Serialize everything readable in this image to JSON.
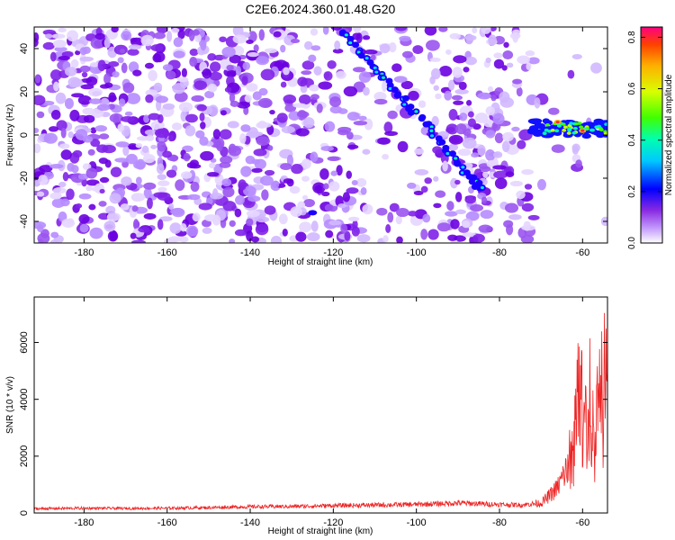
{
  "title": "C2E6.2024.360.01.48.G20",
  "chart_data": [
    {
      "type": "heatmap",
      "xlabel": "Height of straight line (km)",
      "ylabel": "Frequency (Hz)",
      "xlim": [
        -192,
        -54
      ],
      "ylim": [
        -50,
        50
      ],
      "x_ticks": [
        -180,
        -160,
        -140,
        -120,
        -100,
        -80,
        -60
      ],
      "y_ticks": [
        -40,
        -20,
        0,
        20,
        40
      ],
      "colorbar": {
        "label": "Normalized spectral amplitude",
        "range": [
          0,
          0.84
        ],
        "ticks": [
          "0.0",
          "0.2",
          "0.4",
          "0.6",
          "0.8"
        ],
        "colors": [
          "#ffffff",
          "#c9a6ff",
          "#8a2be2",
          "#4b00ff",
          "#0000ff",
          "#00c8ff",
          "#00ffb0",
          "#40ff00",
          "#d8ff00",
          "#ffb000",
          "#ff4000",
          "#ff0080"
        ]
      },
      "features": [
        {
          "name": "diagonal streak",
          "x": [
            -118,
            -112,
            -106,
            -100,
            -94,
            -88,
            -84
          ],
          "y": [
            48,
            35,
            22,
            10,
            -4,
            -18,
            -26
          ]
        },
        {
          "name": "horizontal band",
          "x": [
            -72,
            -54
          ],
          "y": [
            3,
            3
          ]
        }
      ]
    },
    {
      "type": "line",
      "xlabel": "Height of straight line (km)",
      "ylabel": "SNR (10 * v/v)",
      "xlim": [
        -192,
        -54
      ],
      "ylim": [
        0,
        7600
      ],
      "x_ticks": [
        -180,
        -160,
        -140,
        -120,
        -100,
        -80,
        -60
      ],
      "y_ticks": [
        0,
        2000,
        4000,
        6000
      ],
      "color": "#ee2222",
      "series": [
        {
          "x": [
            -192,
            -180,
            -170,
            -160,
            -150,
            -140,
            -130,
            -120,
            -110,
            -100,
            -90,
            -80,
            -75,
            -70,
            -68,
            -66,
            -64,
            -62,
            -61,
            -60,
            -59,
            -58,
            -57,
            -56,
            -55,
            -54
          ],
          "y": [
            150,
            170,
            160,
            170,
            190,
            220,
            230,
            260,
            280,
            300,
            350,
            300,
            280,
            350,
            600,
            900,
            1500,
            2800,
            4600,
            4100,
            3300,
            4700,
            2900,
            6300,
            5200,
            7400
          ]
        }
      ]
    }
  ]
}
